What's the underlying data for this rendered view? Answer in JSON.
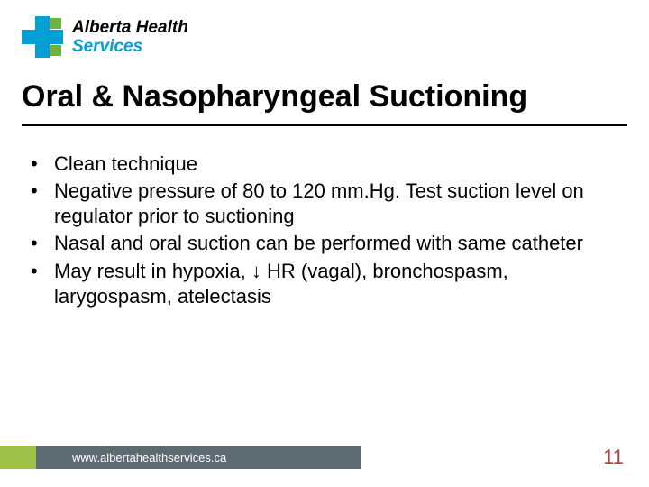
{
  "logo": {
    "line1": "Alberta Health",
    "line2": "Services",
    "colors": {
      "blue": "#009fd6",
      "green": "#6cb33f"
    }
  },
  "title": "Oral & Nasopharyngeal Suctioning",
  "bullets": [
    "Clean technique",
    "Negative pressure of 80 to 120 mm.Hg. Test suction level on regulator prior to suctioning",
    "Nasal and oral suction can be performed with same catheter",
    "May result in hypoxia, ↓ HR (vagal), bronchospasm, larygospasm, atelectasis"
  ],
  "footer": {
    "url": "www.albertahealthservices.ca",
    "green_color": "#a0c14a",
    "grey_color": "#5e6a71"
  },
  "page_number": "11",
  "typography": {
    "title_fontsize": 34,
    "body_fontsize": 22,
    "footer_fontsize": 13,
    "page_num_color": "#b33a3a"
  }
}
